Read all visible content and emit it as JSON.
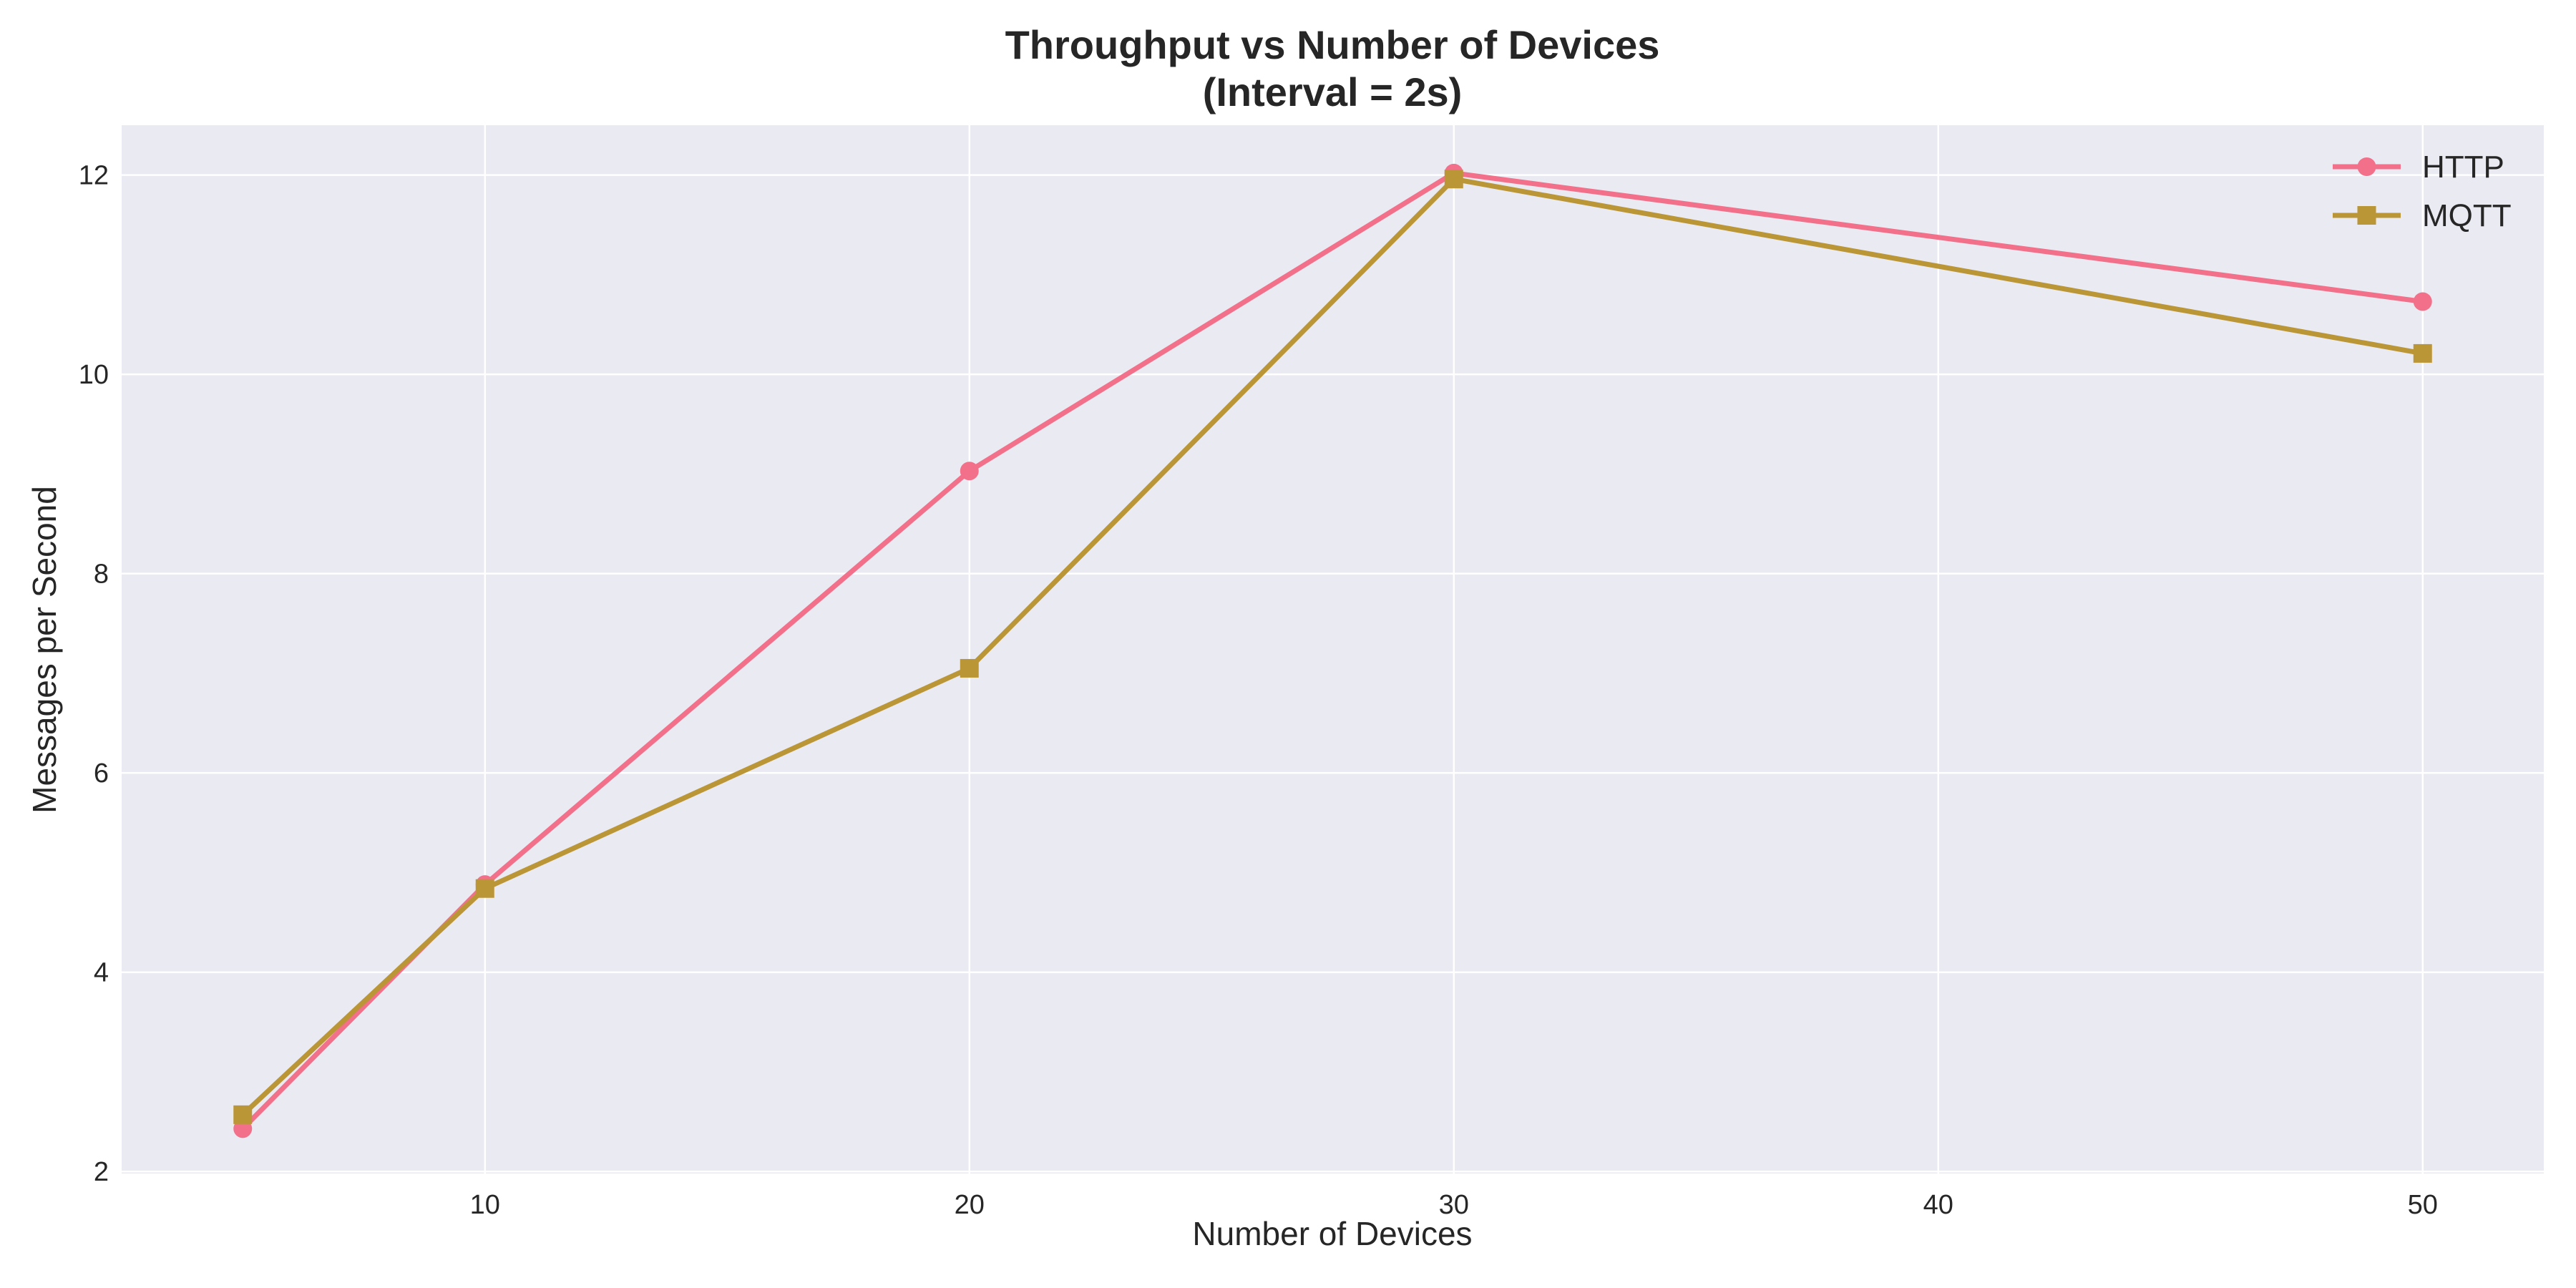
{
  "chart_data": {
    "type": "line",
    "title": "Throughput vs Number of Devices",
    "subtitle": "(Interval = 2s)",
    "xlabel": "Number of Devices",
    "ylabel": "Messages per Second",
    "x": [
      5,
      10,
      20,
      30,
      50
    ],
    "xticks": [
      10,
      20,
      30,
      40,
      50
    ],
    "yticks": [
      2,
      4,
      6,
      8,
      10,
      12
    ],
    "xlim": [
      2.5,
      52.5
    ],
    "ylim": [
      1.98,
      12.5
    ],
    "grid": true,
    "legend_position": "top-right",
    "plot_background": "#eaeaf2",
    "grid_color": "#ffffff",
    "series": [
      {
        "name": "HTTP",
        "values": [
          2.43,
          4.88,
          9.03,
          12.02,
          10.73
        ],
        "color": "#f2708a",
        "marker": "circle"
      },
      {
        "name": "MQTT",
        "values": [
          2.57,
          4.84,
          7.05,
          11.96,
          10.21
        ],
        "color": "#bb9637",
        "marker": "square"
      }
    ]
  }
}
